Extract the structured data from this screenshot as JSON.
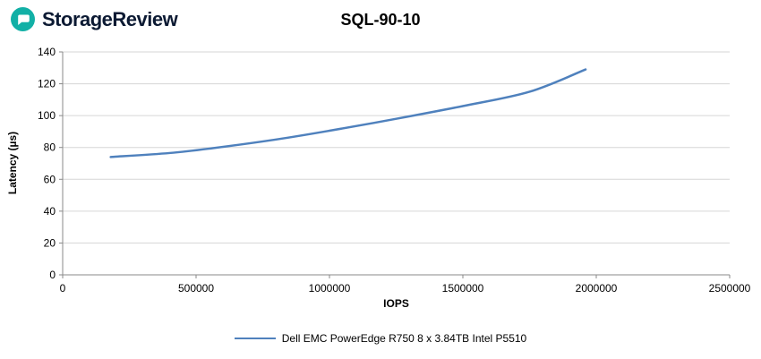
{
  "logo": {
    "text": "StorageReview",
    "icon": "storagereview-bubble-icon",
    "icon_color": "#12b0a6",
    "text_color": "#0c1a33"
  },
  "chart_data": {
    "type": "line",
    "title": "SQL-90-10",
    "xlabel": "IOPS",
    "ylabel": "Latency (µs)",
    "xlim": [
      0,
      2500000
    ],
    "ylim": [
      0,
      140
    ],
    "x_ticks": [
      0,
      500000,
      1000000,
      1500000,
      2000000,
      2500000
    ],
    "y_ticks": [
      0,
      20,
      40,
      60,
      80,
      100,
      120,
      140
    ],
    "grid": "horizontal",
    "legend_position": "bottom",
    "colors": {
      "gridline": "#d6d6d6",
      "axis": "#8a8a8a",
      "series": "#4F81BD"
    },
    "series": [
      {
        "name": "Dell EMC PowerEdge R750 8 x 3.84TB Intel P5510",
        "color": "#4F81BD",
        "x": [
          180000,
          400000,
          560000,
          800000,
          1000000,
          1250000,
          1500000,
          1750000,
          1960000
        ],
        "y": [
          74,
          76.5,
          79.5,
          85,
          90.5,
          98,
          106,
          115,
          129
        ]
      }
    ]
  }
}
